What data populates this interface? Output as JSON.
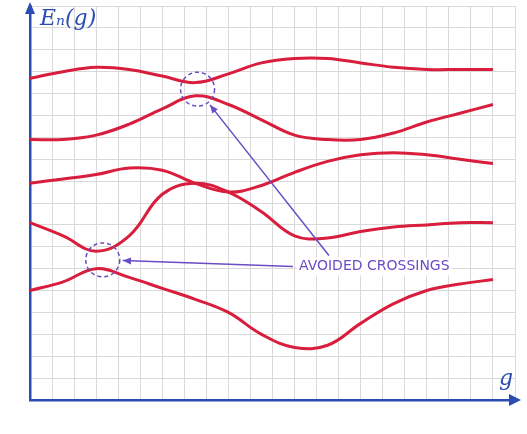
{
  "chart_data": {
    "type": "line",
    "x_label": "g",
    "y_label": "Eₙ(g)",
    "x": [
      0,
      1.5,
      3,
      4.5,
      6,
      7.5,
      9,
      10.5,
      12,
      13.5,
      15,
      16.5,
      18,
      19.5,
      21
    ],
    "series": [
      {
        "color": "#d81e3c",
        "values": [
          14.7,
          15.0,
          15.2,
          15.1,
          14.8,
          14.5,
          14.9,
          15.4,
          15.6,
          15.6,
          15.4,
          15.2,
          15.1,
          15.1,
          15.1
        ]
      },
      {
        "color": "#d81e3c",
        "values": [
          11.9,
          11.9,
          12.1,
          12.6,
          13.3,
          13.9,
          13.5,
          12.8,
          12.1,
          11.9,
          11.9,
          12.2,
          12.7,
          13.1,
          13.5
        ]
      },
      {
        "color": "#d81e3c",
        "values": [
          9.9,
          10.1,
          10.3,
          10.6,
          10.5,
          9.9,
          9.5,
          9.8,
          10.4,
          10.9,
          11.2,
          11.3,
          11.2,
          11.0,
          10.8
        ]
      },
      {
        "color": "#d81e3c",
        "values": [
          8.1,
          7.5,
          6.8,
          7.5,
          9.4,
          9.9,
          9.5,
          8.6,
          7.5,
          7.4,
          7.7,
          7.9,
          8.0,
          8.1,
          8.1
        ]
      },
      {
        "color": "#d81e3c",
        "values": [
          5.0,
          5.4,
          6.0,
          5.6,
          5.1,
          4.6,
          4.0,
          3.0,
          2.4,
          2.5,
          3.5,
          4.4,
          5.0,
          5.3,
          5.5
        ]
      }
    ],
    "xlim": [
      0,
      22
    ],
    "ylim": [
      0,
      18
    ],
    "xticks": [
      0,
      1,
      2,
      3,
      4,
      5,
      6,
      7,
      8,
      9,
      10,
      11,
      12,
      13,
      14,
      15,
      16,
      17,
      18,
      19,
      20,
      21,
      22
    ],
    "yticks": [
      0,
      1,
      2,
      3,
      4,
      5,
      6,
      7,
      8,
      9,
      10,
      11,
      12,
      13,
      14,
      15,
      16,
      17,
      18
    ],
    "tick_labels": false,
    "grid": true,
    "annotations": [
      {
        "text": "AVOIDED CROSSINGS",
        "x": 12.2,
        "y": 6.1,
        "targets": [
          {
            "x": 7.6,
            "y": 14.2
          },
          {
            "x": 3.3,
            "y": 6.4
          }
        ]
      }
    ]
  }
}
